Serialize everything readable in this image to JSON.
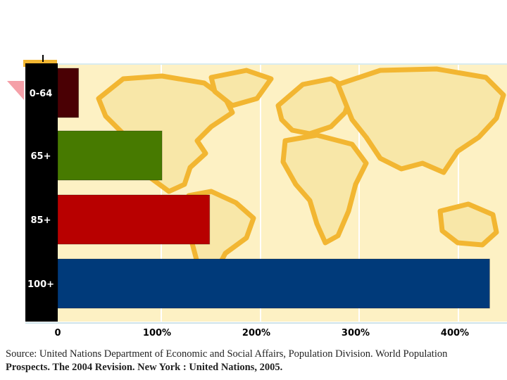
{
  "chart_data": {
    "type": "bar",
    "orientation": "horizontal",
    "categories": [
      "0-64",
      "65+",
      "85+",
      "100+"
    ],
    "values": [
      21,
      105,
      153,
      435
    ],
    "series_colors": [
      "#4a0004",
      "#477a00",
      "#b80000",
      "#003a7a"
    ],
    "xlim": [
      0,
      450
    ],
    "xticks": [
      0,
      100,
      200,
      300,
      400
    ],
    "xtick_labels": [
      "0",
      "100%",
      "200%",
      "300%",
      "400%"
    ],
    "background": "world map",
    "title": "",
    "xlabel": "",
    "ylabel": ""
  },
  "source": {
    "line1": "Source: United Nations Department of Economic and Social Affairs, Population Division. World Population",
    "line2": "Prospects. The 2004 Revision. New York : United Nations, 2005."
  },
  "colors": {
    "map_water": "#fdf1c4",
    "map_land": "#f8e7a8",
    "map_outline": "#f2b632",
    "axis_strip": "#000000"
  }
}
